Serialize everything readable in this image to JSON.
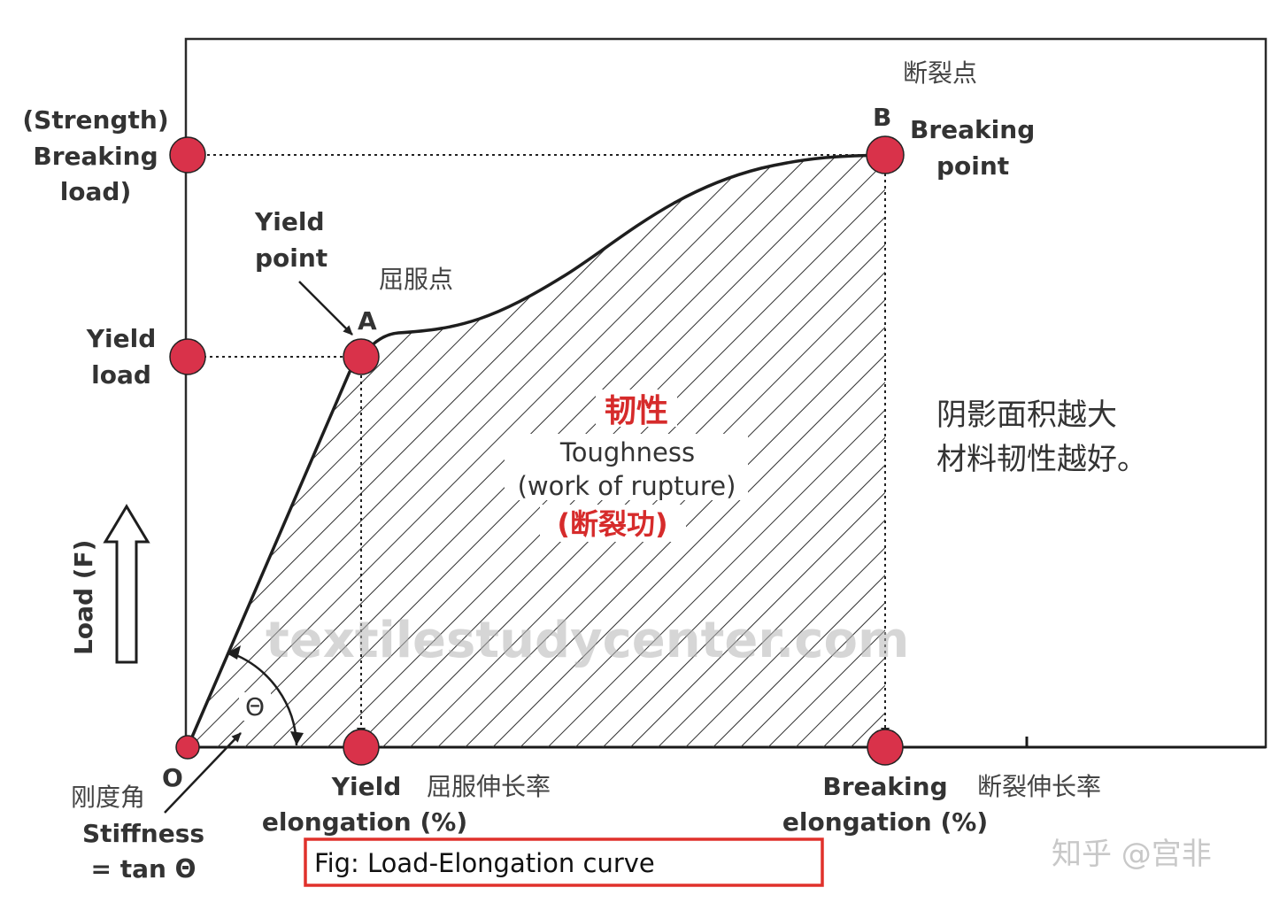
{
  "diagram": {
    "y_axis": {
      "breaking_load_lines": [
        "(Strength)",
        "Breaking",
        "load)"
      ],
      "yield_load_lines": [
        "Yield",
        "load"
      ],
      "axis_title": "Load (F)"
    },
    "points": {
      "origin": "O",
      "a": "A",
      "b": "B"
    },
    "yield_point_lines": [
      "Yield",
      "point"
    ],
    "yield_point_cn": "屈服点",
    "breaking_point_cn": "断裂点",
    "breaking_point_lines": [
      "Breaking",
      "point"
    ],
    "toughness": {
      "cn": "韧性",
      "en_1": "Toughness",
      "en_2": "(work of rupture)",
      "cn_2": "(断裂功)"
    },
    "note_lines": [
      "阴影面积越大",
      "材料韧性越好。"
    ],
    "angle_symbol": "Θ",
    "stiffness": {
      "cn": "刚度角",
      "line_1": "Stiffness",
      "line_2": "= tan Θ"
    },
    "x_axis": {
      "yield_elongation_1": "Yield",
      "yield_elongation_cn": "屈服伸长率",
      "yield_elongation_2": "elongation (%)",
      "breaking_elongation_1": "Breaking",
      "breaking_elongation_cn": "断裂伸长率",
      "breaking_elongation_2": "elongation (%)"
    },
    "watermark": "textilestudycenter.com",
    "caption": "Fig: Load-Elongation curve",
    "credit": "知乎 @宫非",
    "colors": {
      "marker": "#d9324a",
      "caption_border": "#e0312b",
      "chinese_highlight": "#d62b2b",
      "hatch": "#2f2f2f"
    }
  }
}
